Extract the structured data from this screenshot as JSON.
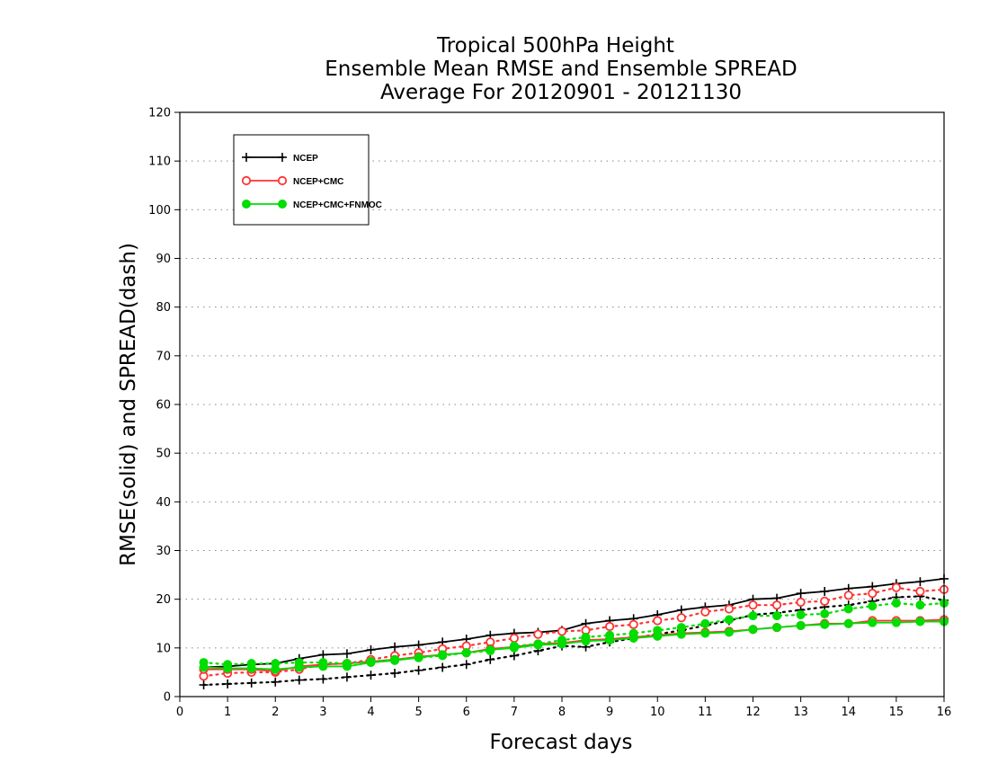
{
  "chart_data": {
    "type": "line",
    "title_lines": [
      "Tropical 500hPa Height",
      "Ensemble Mean RMSE and Ensemble SPREAD",
      "Average For 20120901 - 20121130"
    ],
    "xlabel": "Forecast days",
    "ylabel": "RMSE(solid) and SPREAD(dash)",
    "xlim": [
      0,
      16
    ],
    "ylim": [
      0,
      120
    ],
    "x_ticks": [
      "0",
      "1",
      "2",
      "3",
      "4",
      "5",
      "6",
      "7",
      "8",
      "9",
      "10",
      "11",
      "12",
      "13",
      "14",
      "15",
      "16"
    ],
    "y_ticks": [
      "0",
      "10",
      "20",
      "30",
      "40",
      "50",
      "60",
      "70",
      "80",
      "90",
      "100",
      "110",
      "120"
    ],
    "grid": "horizontal-dotted",
    "legend_position": "top-left",
    "x": [
      0.5,
      1.0,
      1.5,
      2.0,
      2.5,
      3.0,
      3.5,
      4.0,
      4.5,
      5.0,
      5.5,
      6.0,
      6.5,
      7.0,
      7.5,
      8.0,
      8.5,
      9.0,
      9.5,
      10.0,
      10.5,
      11.0,
      11.5,
      12.0,
      12.5,
      13.0,
      13.5,
      14.0,
      14.5,
      15.0,
      15.5,
      16.0
    ],
    "series": [
      {
        "name": "NCEP",
        "color": "#000000",
        "marker": "plus",
        "rmse": [
          6.0,
          6.2,
          6.6,
          6.8,
          7.8,
          8.6,
          8.8,
          9.6,
          10.2,
          10.6,
          11.2,
          11.8,
          12.6,
          13.0,
          13.2,
          13.6,
          15.0,
          15.6,
          16.0,
          16.8,
          17.8,
          18.4,
          18.8,
          20.0,
          20.2,
          21.2,
          21.6,
          22.2,
          22.6,
          23.2,
          23.6,
          24.2
        ],
        "spread": [
          2.4,
          2.6,
          2.8,
          3.0,
          3.4,
          3.6,
          4.0,
          4.4,
          4.8,
          5.4,
          6.0,
          6.6,
          7.6,
          8.4,
          9.4,
          10.4,
          10.2,
          11.2,
          12.0,
          12.8,
          13.6,
          14.6,
          15.6,
          16.8,
          17.2,
          17.8,
          18.4,
          18.8,
          19.6,
          20.4,
          20.6,
          19.8
        ]
      },
      {
        "name": "NCEP+CMC",
        "color": "#ff3333",
        "marker": "open-circle",
        "rmse": [
          5.6,
          5.6,
          5.6,
          5.2,
          6.2,
          6.6,
          6.8,
          7.2,
          7.6,
          8.2,
          8.6,
          9.0,
          9.8,
          10.2,
          10.8,
          11.0,
          11.6,
          11.8,
          12.2,
          12.6,
          13.0,
          13.2,
          13.4,
          13.8,
          14.2,
          14.6,
          15.0,
          15.0,
          15.6,
          15.6,
          15.6,
          15.8
        ],
        "spread": [
          4.2,
          4.8,
          5.0,
          5.0,
          5.6,
          6.6,
          6.8,
          7.6,
          8.4,
          9.0,
          9.8,
          10.4,
          11.2,
          12.0,
          12.8,
          13.4,
          13.6,
          14.4,
          14.8,
          15.6,
          16.2,
          17.4,
          18.0,
          18.8,
          18.8,
          19.4,
          19.6,
          20.8,
          21.2,
          22.4,
          21.6,
          22.0
        ]
      },
      {
        "name": "NCEP+CMC+FNMOC",
        "color": "#00dd00",
        "marker": "filled-circle",
        "rmse": [
          6.0,
          5.8,
          5.8,
          5.6,
          6.0,
          6.2,
          6.2,
          7.0,
          7.4,
          8.0,
          8.6,
          9.0,
          9.6,
          10.0,
          10.6,
          10.8,
          11.4,
          11.6,
          12.0,
          12.4,
          12.8,
          13.0,
          13.2,
          13.8,
          14.2,
          14.6,
          14.8,
          15.0,
          15.2,
          15.2,
          15.4,
          15.4
        ],
        "spread": [
          7.0,
          6.6,
          6.8,
          6.8,
          7.0,
          7.0,
          6.8,
          7.2,
          7.6,
          8.0,
          8.4,
          9.0,
          9.4,
          10.4,
          10.8,
          11.6,
          12.2,
          12.6,
          13.0,
          13.6,
          14.2,
          15.0,
          15.8,
          16.6,
          16.6,
          16.8,
          17.0,
          18.0,
          18.6,
          19.2,
          18.8,
          19.2
        ]
      }
    ]
  }
}
